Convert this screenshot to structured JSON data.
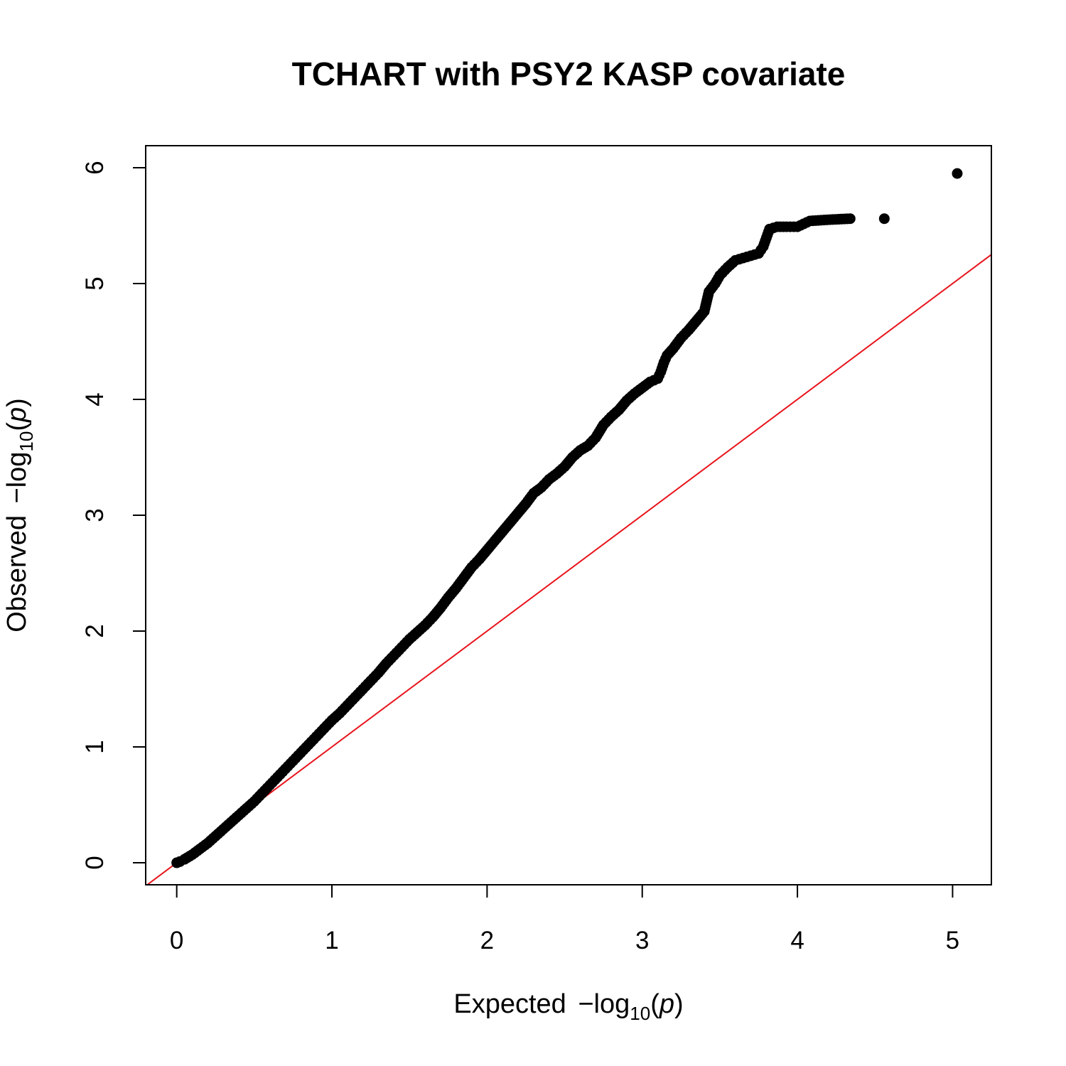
{
  "chart_data": {
    "type": "scatter",
    "title": "TCHART with PSY2 KASP covariate",
    "xlabel": {
      "prefix": "Expected ",
      "minus": "−",
      "log": "log",
      "base": "10",
      "open": "(",
      "var": "p",
      "close": ")"
    },
    "ylabel": {
      "prefix": "Observed ",
      "minus": "−",
      "log": "log",
      "base": "10",
      "open": "(",
      "var": "p",
      "close": ")"
    },
    "xlim": [
      -0.2,
      5.25
    ],
    "ylim": [
      -0.19,
      6.19
    ],
    "x_ticks": [
      0,
      1,
      2,
      3,
      4,
      5
    ],
    "y_ticks": [
      0,
      1,
      2,
      3,
      4,
      5,
      6
    ],
    "x_tick_labels": [
      "0",
      "1",
      "2",
      "3",
      "4",
      "5"
    ],
    "y_tick_labels": [
      "0",
      "1",
      "2",
      "3",
      "4",
      "5",
      "6"
    ],
    "grid": false,
    "legend": "none",
    "reference_line": {
      "slope": 1,
      "intercept": 0,
      "color": "#e8141c"
    },
    "point_color": "#000000",
    "series": [
      {
        "points": [
          [
            0.0,
            0.0
          ],
          [
            0.02,
            0.01
          ],
          [
            0.05,
            0.03
          ],
          [
            0.1,
            0.07
          ],
          [
            0.15,
            0.12
          ],
          [
            0.2,
            0.17
          ],
          [
            0.25,
            0.23
          ],
          [
            0.3,
            0.29
          ],
          [
            0.35,
            0.35
          ],
          [
            0.4,
            0.41
          ],
          [
            0.45,
            0.47
          ],
          [
            0.5,
            0.53
          ],
          [
            0.55,
            0.6
          ],
          [
            0.6,
            0.67
          ],
          [
            0.65,
            0.74
          ],
          [
            0.7,
            0.81
          ],
          [
            0.75,
            0.88
          ],
          [
            0.8,
            0.95
          ],
          [
            0.85,
            1.02
          ],
          [
            0.9,
            1.09
          ],
          [
            0.95,
            1.16
          ],
          [
            1.0,
            1.23
          ],
          [
            1.05,
            1.29
          ],
          [
            1.1,
            1.36
          ],
          [
            1.15,
            1.43
          ],
          [
            1.2,
            1.5
          ],
          [
            1.25,
            1.57
          ],
          [
            1.3,
            1.64
          ],
          [
            1.35,
            1.72
          ],
          [
            1.4,
            1.79
          ],
          [
            1.45,
            1.86
          ],
          [
            1.5,
            1.93
          ],
          [
            1.55,
            1.99
          ],
          [
            1.6,
            2.05
          ],
          [
            1.65,
            2.12
          ],
          [
            1.7,
            2.2
          ],
          [
            1.75,
            2.29
          ],
          [
            1.8,
            2.37
          ],
          [
            1.85,
            2.46
          ],
          [
            1.9,
            2.55
          ],
          [
            1.95,
            2.62
          ],
          [
            2.0,
            2.7
          ],
          [
            2.05,
            2.78
          ],
          [
            2.1,
            2.86
          ],
          [
            2.15,
            2.94
          ],
          [
            2.2,
            3.02
          ],
          [
            2.25,
            3.1
          ],
          [
            2.3,
            3.19
          ],
          [
            2.35,
            3.24
          ],
          [
            2.4,
            3.31
          ],
          [
            2.45,
            3.36
          ],
          [
            2.5,
            3.42
          ],
          [
            2.55,
            3.5
          ],
          [
            2.6,
            3.56
          ],
          [
            2.65,
            3.6
          ],
          [
            2.7,
            3.67
          ],
          [
            2.75,
            3.78
          ],
          [
            2.8,
            3.85
          ],
          [
            2.85,
            3.91
          ],
          [
            2.9,
            3.99
          ],
          [
            2.95,
            4.05
          ],
          [
            3.0,
            4.1
          ],
          [
            3.05,
            4.15
          ],
          [
            3.1,
            4.18
          ],
          [
            3.12,
            4.24
          ],
          [
            3.14,
            4.32
          ],
          [
            3.16,
            4.38
          ],
          [
            3.2,
            4.44
          ],
          [
            3.25,
            4.53
          ],
          [
            3.3,
            4.6
          ],
          [
            3.35,
            4.68
          ],
          [
            3.4,
            4.76
          ],
          [
            3.43,
            4.93
          ],
          [
            3.47,
            5.0
          ],
          [
            3.5,
            5.07
          ],
          [
            3.55,
            5.14
          ],
          [
            3.6,
            5.2
          ],
          [
            3.65,
            5.22
          ],
          [
            3.7,
            5.24
          ],
          [
            3.75,
            5.26
          ],
          [
            3.78,
            5.32
          ],
          [
            3.82,
            5.47
          ],
          [
            3.87,
            5.49
          ],
          [
            3.93,
            5.49
          ],
          [
            4.0,
            5.49
          ],
          [
            4.08,
            5.54
          ],
          [
            4.19,
            5.55
          ],
          [
            4.34,
            5.56
          ],
          [
            4.56,
            5.56
          ],
          [
            5.03,
            5.95
          ]
        ]
      }
    ]
  }
}
